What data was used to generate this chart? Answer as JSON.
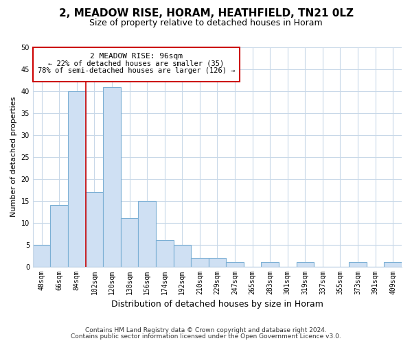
{
  "title": "2, MEADOW RISE, HORAM, HEATHFIELD, TN21 0LZ",
  "subtitle": "Size of property relative to detached houses in Horam",
  "xlabel": "Distribution of detached houses by size in Horam",
  "ylabel": "Number of detached properties",
  "bar_values": [
    5,
    14,
    40,
    17,
    41,
    11,
    15,
    6,
    5,
    2,
    2,
    1,
    0,
    1,
    0,
    1,
    0,
    0,
    1,
    0,
    1
  ],
  "bar_labels": [
    "48sqm",
    "66sqm",
    "84sqm",
    "102sqm",
    "120sqm",
    "138sqm",
    "156sqm",
    "174sqm",
    "192sqm",
    "210sqm",
    "229sqm",
    "247sqm",
    "265sqm",
    "283sqm",
    "301sqm",
    "319sqm",
    "337sqm",
    "355sqm",
    "373sqm",
    "391sqm",
    "409sqm"
  ],
  "bar_color": "#cfe0f3",
  "bar_edge_color": "#7bafd4",
  "vline_color": "#cc0000",
  "annotation_title": "2 MEADOW RISE: 96sqm",
  "annotation_line1": "← 22% of detached houses are smaller (35)",
  "annotation_line2": "78% of semi-detached houses are larger (126) →",
  "annotation_box_color": "#ffffff",
  "annotation_box_edge": "#cc0000",
  "ylim": [
    0,
    50
  ],
  "yticks": [
    0,
    5,
    10,
    15,
    20,
    25,
    30,
    35,
    40,
    45,
    50
  ],
  "footer1": "Contains HM Land Registry data © Crown copyright and database right 2024.",
  "footer2": "Contains public sector information licensed under the Open Government Licence v3.0.",
  "bg_color": "#ffffff",
  "grid_color": "#c8d8e8",
  "title_fontsize": 11,
  "subtitle_fontsize": 9,
  "ylabel_fontsize": 8,
  "xlabel_fontsize": 9,
  "tick_fontsize": 7,
  "annotation_title_fontsize": 8,
  "annotation_body_fontsize": 7.5,
  "footer_fontsize": 6.5
}
